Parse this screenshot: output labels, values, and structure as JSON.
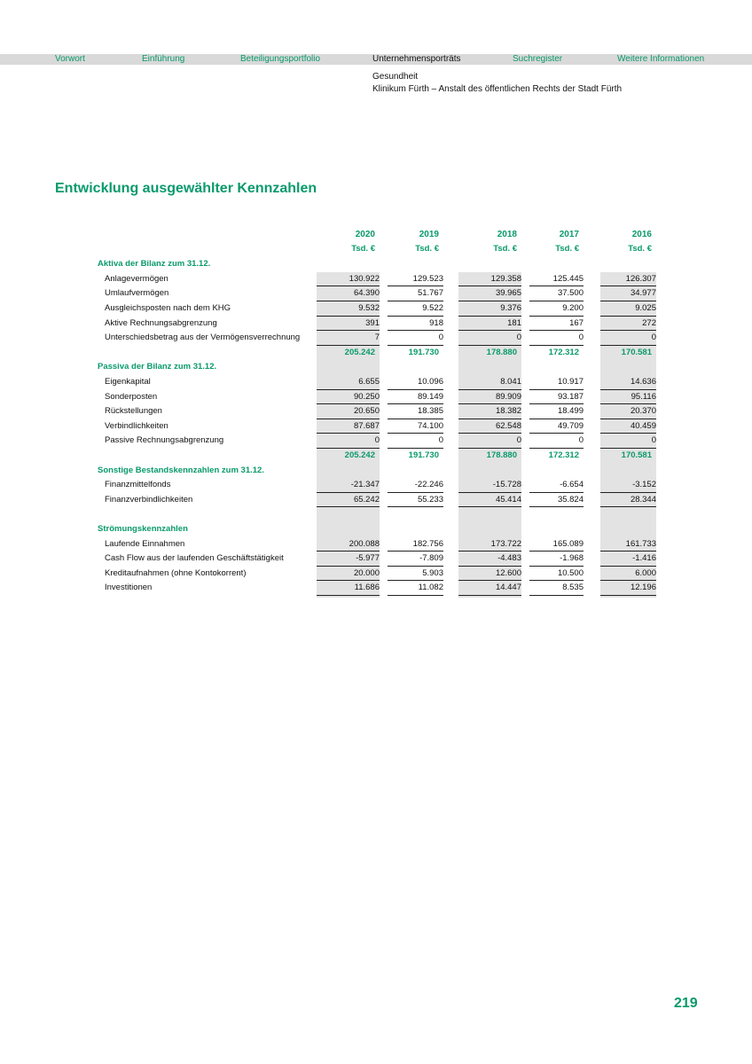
{
  "nav": [
    "Vorwort",
    "Einführung",
    "Beteiligungsportfolio",
    "Unternehmensporträts",
    "Suchregister",
    "Weitere Informationen"
  ],
  "breadcrumb": [
    "Gesundheit",
    "Klinikum Fürth – Anstalt des öffentlichen Rechts der Stadt Fürth"
  ],
  "title": "Entwicklung ausgewählter Kennzahlen",
  "table": {
    "columns": [
      {
        "year": "2020",
        "unit": "Tsd. €"
      },
      {
        "year": "2019",
        "unit": "Tsd. €"
      },
      {
        "year": "2018",
        "unit": "Tsd. €"
      },
      {
        "year": "2017",
        "unit": "Tsd. €"
      },
      {
        "year": "2016",
        "unit": "Tsd. €"
      }
    ],
    "sections": [
      {
        "title": "Aktiva der Bilanz zum 31.12.",
        "rows": [
          {
            "label": "Anlagevermögen",
            "values": [
              "130.922",
              "129.523",
              "129.358",
              "125.445",
              "126.307"
            ]
          },
          {
            "label": "Umlaufvermögen",
            "values": [
              "64.390",
              "51.767",
              "39.965",
              "37.500",
              "34.977"
            ]
          },
          {
            "label": "Ausgleichsposten nach dem KHG",
            "values": [
              "9.532",
              "9.522",
              "9.376",
              "9.200",
              "9.025"
            ]
          },
          {
            "label": "Aktive Rechnungsabgrenzung",
            "values": [
              "391",
              "918",
              "181",
              "167",
              "272"
            ]
          },
          {
            "label": "Unterschiedsbetrag aus der Vermögensverrechnung",
            "values": [
              "7",
              "0",
              "0",
              "0",
              "0"
            ]
          }
        ],
        "total": [
          "205.242",
          "191.730",
          "178.880",
          "172.312",
          "170.581"
        ]
      },
      {
        "title": "Passiva der Bilanz zum 31.12.",
        "rows": [
          {
            "label": "Eigenkapital",
            "values": [
              "6.655",
              "10.096",
              "8.041",
              "10.917",
              "14.636"
            ]
          },
          {
            "label": "Sonderposten",
            "values": [
              "90.250",
              "89.149",
              "89.909",
              "93.187",
              "95.116"
            ]
          },
          {
            "label": "Rückstellungen",
            "values": [
              "20.650",
              "18.385",
              "18.382",
              "18.499",
              "20.370"
            ]
          },
          {
            "label": "Verbindlichkeiten",
            "values": [
              "87.687",
              "74.100",
              "62.548",
              "49.709",
              "40.459"
            ]
          },
          {
            "label": "Passive Rechnungsabgrenzung",
            "values": [
              "0",
              "0",
              "0",
              "0",
              "0"
            ]
          }
        ],
        "total": [
          "205.242",
          "191.730",
          "178.880",
          "172.312",
          "170.581"
        ]
      },
      {
        "title": "Sonstige Bestandskennzahlen zum 31.12.",
        "rows": [
          {
            "label": "Finanzmittelfonds",
            "values": [
              "-21.347",
              "-22.246",
              "-15.728",
              "-6.654",
              "-3.152"
            ]
          },
          {
            "label": "Finanzverbindlichkeiten",
            "values": [
              "65.242",
              "55.233",
              "45.414",
              "35.824",
              "28.344"
            ]
          }
        ]
      },
      {
        "title": "Strömungskennzahlen",
        "rows": [
          {
            "label": "Laufende Einnahmen",
            "values": [
              "200.088",
              "182.756",
              "173.722",
              "165.089",
              "161.733"
            ]
          },
          {
            "label": "Cash Flow aus der laufenden Geschäftstätigkeit",
            "values": [
              "-5.977",
              "-7.809",
              "-4.483",
              "-1.968",
              "-1.416"
            ]
          },
          {
            "label": "Kreditaufnahmen (ohne Kontokorrent)",
            "values": [
              "20.000",
              "5.903",
              "12.600",
              "10.500",
              "6.000"
            ]
          },
          {
            "label": "Investitionen",
            "values": [
              "11.686",
              "11.082",
              "14.447",
              "8.535",
              "12.196"
            ]
          }
        ]
      }
    ]
  },
  "page_number": "219"
}
